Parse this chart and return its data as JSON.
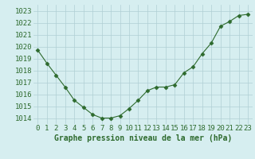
{
  "x": [
    0,
    1,
    2,
    3,
    4,
    5,
    6,
    7,
    8,
    9,
    10,
    11,
    12,
    13,
    14,
    15,
    16,
    17,
    18,
    19,
    20,
    21,
    22,
    23
  ],
  "y": [
    1019.7,
    1018.6,
    1017.6,
    1016.6,
    1015.5,
    1014.9,
    1014.3,
    1014.0,
    1014.0,
    1014.2,
    1014.8,
    1015.5,
    1016.3,
    1016.6,
    1016.6,
    1016.8,
    1017.8,
    1018.3,
    1019.4,
    1020.3,
    1021.7,
    1022.1,
    1022.6,
    1022.7
  ],
  "line_color": "#2d6a2d",
  "marker": "D",
  "marker_size": 2.5,
  "bg_color": "#d6eef0",
  "grid_color": "#b0cfd4",
  "ylabel_ticks": [
    1014,
    1015,
    1016,
    1017,
    1018,
    1019,
    1020,
    1021,
    1022,
    1023
  ],
  "xlabel": "Graphe pression niveau de la mer (hPa)",
  "ylim": [
    1013.5,
    1023.5
  ],
  "xlim": [
    -0.5,
    23.5
  ],
  "xlabel_fontsize": 7,
  "tick_fontsize": 6.5
}
